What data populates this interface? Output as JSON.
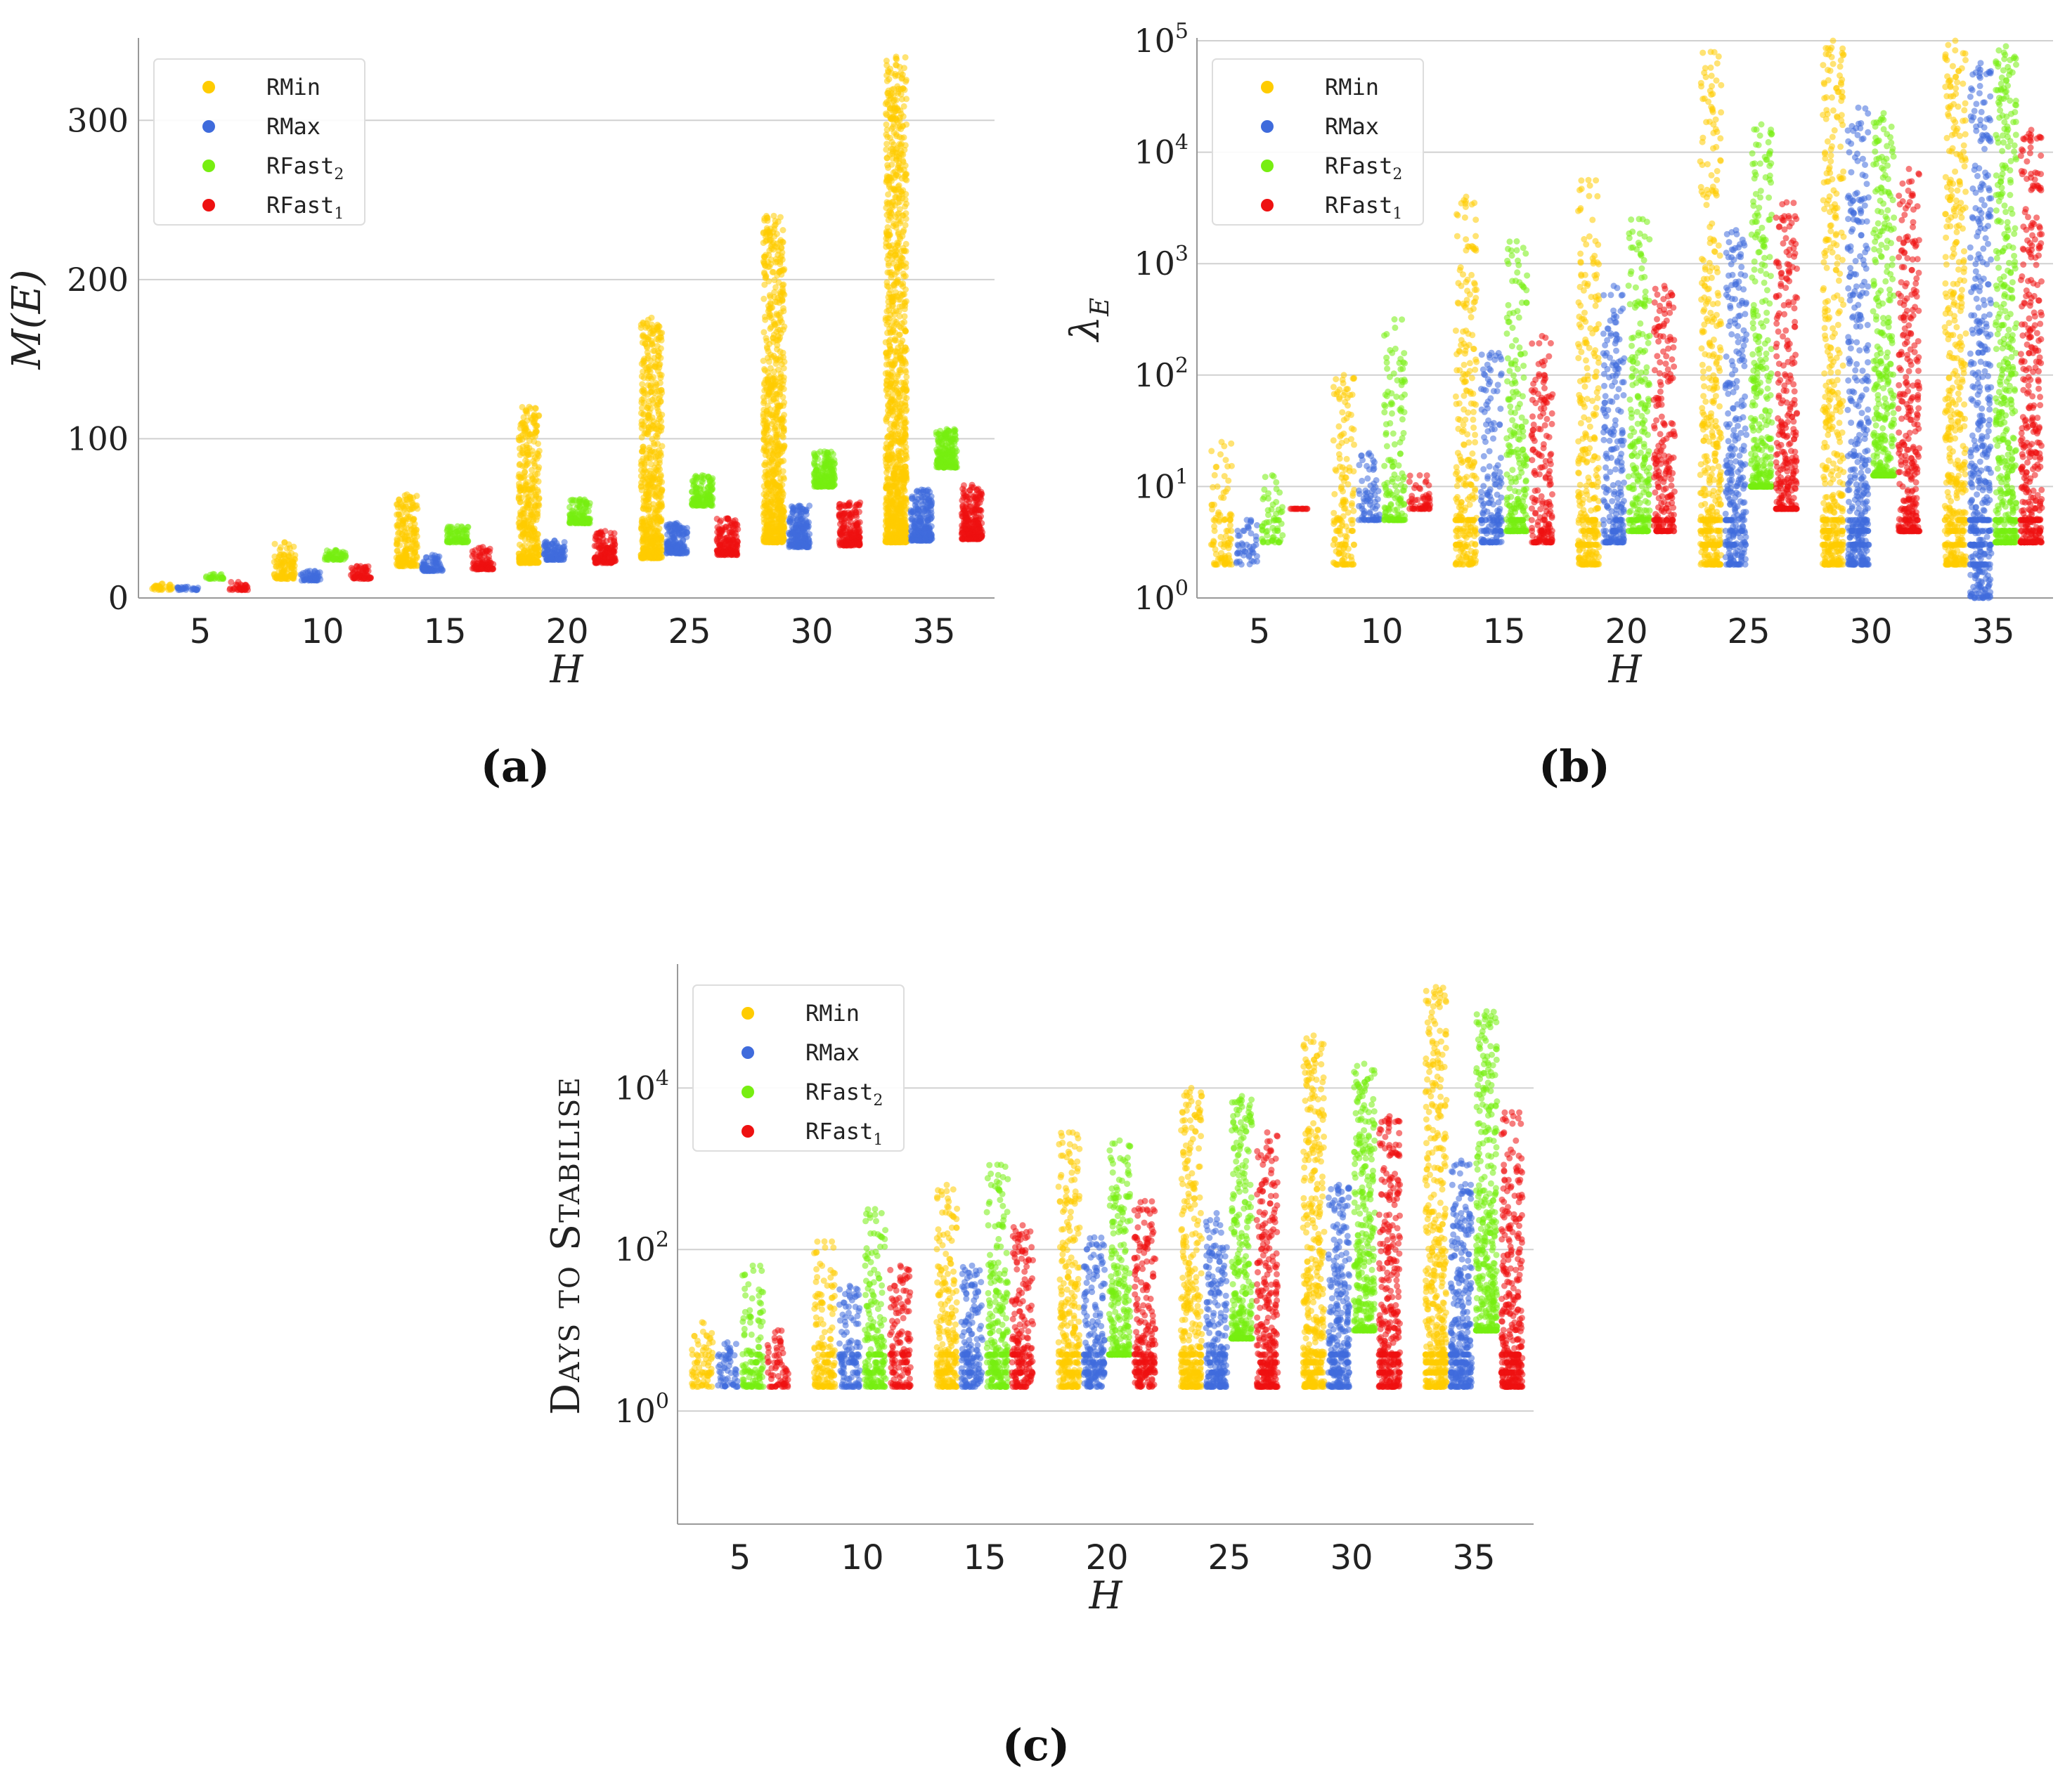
{
  "panel_labels": {
    "a": "(a)",
    "b": "(b)",
    "c": "(c)"
  },
  "colors": {
    "RMin": "#FFCC00",
    "RMax": "#3F6BDC",
    "RFast2": "#77EE11",
    "RFast1": "#EE1111",
    "grid": "#d0d0d0",
    "axis": "#999999",
    "text": "#222222"
  },
  "legend": [
    {
      "key": "RMin",
      "base": "RMin",
      "sub": ""
    },
    {
      "key": "RMax",
      "base": "RMax",
      "sub": ""
    },
    {
      "key": "RFast2",
      "base": "RFast",
      "sub": "2"
    },
    {
      "key": "RFast1",
      "base": "RFast",
      "sub": "1"
    }
  ],
  "chart_data": [
    {
      "id": "a",
      "type": "scatter",
      "scale": "linear",
      "xlabel": "H",
      "ylabel_base": "M(E)",
      "categories": [
        "5",
        "10",
        "15",
        "20",
        "25",
        "30",
        "35"
      ],
      "ylim": [
        0,
        350
      ],
      "yticks": [
        0,
        100,
        200,
        300
      ],
      "ytick_labels": [
        "0",
        "100",
        "200",
        "300"
      ],
      "series_ranges": {
        "RMin": [
          [
            5,
            9
          ],
          [
            12,
            35
          ],
          [
            20,
            65
          ],
          [
            22,
            120
          ],
          [
            25,
            176
          ],
          [
            35,
            240
          ],
          [
            35,
            340
          ]
        ],
        "RMax": [
          [
            5,
            7
          ],
          [
            11,
            17
          ],
          [
            17,
            27
          ],
          [
            24,
            36
          ],
          [
            28,
            47
          ],
          [
            32,
            58
          ],
          [
            36,
            68
          ]
        ],
        "RFast2": [
          [
            12,
            15
          ],
          [
            24,
            30
          ],
          [
            35,
            45
          ],
          [
            47,
            62
          ],
          [
            58,
            77
          ],
          [
            70,
            92
          ],
          [
            82,
            106
          ]
        ],
        "RFast1": [
          [
            5,
            10
          ],
          [
            12,
            20
          ],
          [
            18,
            32
          ],
          [
            22,
            42
          ],
          [
            27,
            50
          ],
          [
            33,
            60
          ],
          [
            37,
            71
          ]
        ]
      }
    },
    {
      "id": "b",
      "type": "scatter",
      "scale": "log",
      "xlabel": "H",
      "ylabel_base": "λ",
      "ylabel_sub": "E",
      "categories": [
        "5",
        "10",
        "15",
        "20",
        "25",
        "30",
        "35"
      ],
      "ylim_exp": [
        0,
        5
      ],
      "ytick_exps": [
        0,
        1,
        2,
        3,
        4,
        5
      ],
      "ytick_base": "10",
      "ytick_supers": [
        "0",
        "1",
        "2",
        "3",
        "4",
        "5"
      ],
      "series_ranges_exp": {
        "RMin": [
          [
            0.3,
            1.4
          ],
          [
            0.3,
            2.0
          ],
          [
            0.3,
            3.6
          ],
          [
            0.3,
            3.75
          ],
          [
            0.3,
            4.9
          ],
          [
            0.3,
            5.0
          ],
          [
            0.3,
            5.0
          ]
        ],
        "RMax": [
          [
            0.3,
            0.7
          ],
          [
            0.7,
            1.3
          ],
          [
            0.5,
            2.2
          ],
          [
            0.5,
            2.8
          ],
          [
            0.3,
            3.3
          ],
          [
            0.3,
            4.4
          ],
          [
            0.0,
            4.8
          ]
        ],
        "RFast2": [
          [
            0.5,
            1.1
          ],
          [
            0.7,
            2.5
          ],
          [
            0.6,
            3.2
          ],
          [
            0.6,
            3.4
          ],
          [
            1.0,
            4.25
          ],
          [
            1.1,
            4.35
          ],
          [
            0.5,
            4.95
          ]
        ],
        "RFast1": [
          [
            0.8,
            0.8
          ],
          [
            0.8,
            1.1
          ],
          [
            0.5,
            2.35
          ],
          [
            0.6,
            2.8
          ],
          [
            0.8,
            3.55
          ],
          [
            0.6,
            3.85
          ],
          [
            0.5,
            4.2
          ]
        ]
      }
    },
    {
      "id": "c",
      "type": "scatter",
      "scale": "log",
      "xlabel": "H",
      "ylabel": "Days to Stabilise",
      "categories": [
        "5",
        "10",
        "15",
        "20",
        "25",
        "30",
        "35"
      ],
      "ylim_exp": [
        -1.4,
        5.5
      ],
      "ytick_exps": [
        0,
        2,
        4
      ],
      "ytick_base": "10",
      "ytick_supers": [
        "0",
        "2",
        "4"
      ],
      "series_ranges_exp": {
        "RMin": [
          [
            0.3,
            1.1
          ],
          [
            0.3,
            2.1
          ],
          [
            0.3,
            2.8
          ],
          [
            0.3,
            3.45
          ],
          [
            0.3,
            4.0
          ],
          [
            0.3,
            4.65
          ],
          [
            0.3,
            5.25
          ]
        ],
        "RMax": [
          [
            0.3,
            0.85
          ],
          [
            0.3,
            1.55
          ],
          [
            0.3,
            1.8
          ],
          [
            0.3,
            2.15
          ],
          [
            0.3,
            2.45
          ],
          [
            0.3,
            2.8
          ],
          [
            0.3,
            3.1
          ]
        ],
        "RFast2": [
          [
            0.3,
            1.8
          ],
          [
            0.3,
            2.5
          ],
          [
            0.3,
            3.05
          ],
          [
            0.7,
            3.35
          ],
          [
            0.9,
            3.9
          ],
          [
            1.0,
            4.3
          ],
          [
            1.0,
            4.95
          ]
        ],
        "RFast1": [
          [
            0.3,
            1.0
          ],
          [
            0.3,
            1.8
          ],
          [
            0.3,
            2.3
          ],
          [
            0.3,
            2.6
          ],
          [
            0.3,
            3.45
          ],
          [
            0.3,
            3.65
          ],
          [
            0.3,
            3.7
          ]
        ]
      }
    }
  ]
}
